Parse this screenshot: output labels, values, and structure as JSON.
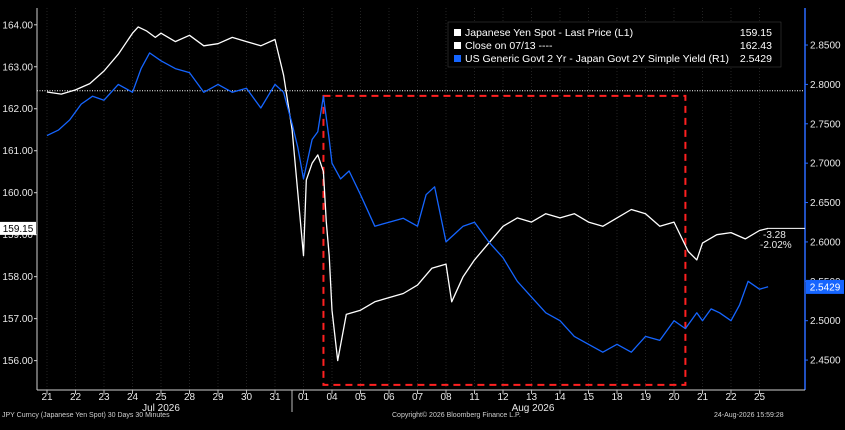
{
  "chart_data": {
    "type": "line",
    "x_unit": "trading days (Jul 21 2026 – Aug 25 2026, 30 minute bars)",
    "month_labels": [
      "Jul 2026",
      "Aug 2026"
    ],
    "x_ticks": [
      "21",
      "22",
      "23",
      "24",
      "25",
      "28",
      "29",
      "30",
      "31",
      "01",
      "04",
      "05",
      "06",
      "07",
      "08",
      "11",
      "12",
      "13",
      "14",
      "15",
      "18",
      "19",
      "20",
      "21",
      "22",
      "25"
    ],
    "left_axis": {
      "ticks": [
        "156.00",
        "157.00",
        "158.00",
        "159.00",
        "160.00",
        "161.00",
        "162.00",
        "163.00",
        "164.00"
      ],
      "ylim": [
        155.3,
        164.4
      ]
    },
    "right_axis": {
      "ticks": [
        "2.4500",
        "2.5000",
        "2.5500",
        "2.6000",
        "2.6500",
        "2.7000",
        "2.7500",
        "2.8000",
        "2.8500"
      ],
      "ylim": [
        2.412,
        2.897
      ]
    },
    "colors": {
      "yen": "#ffffff",
      "yield": "#1565ff",
      "highlight_box": "#ff2020",
      "grid": "#3a3a3a",
      "axis_right": "#2a6bff"
    },
    "legend": {
      "series1": {
        "label": "Japanese Yen Spot - Last Price (L1)",
        "value": "159.15"
      },
      "reference": {
        "label": "Close on 07/13 ----",
        "value": "162.43"
      },
      "series2": {
        "label": "US Generic Govt 2 Yr - Japan Govt 2Y Simple Yield (R1)",
        "value": "2.5429"
      }
    },
    "last_value_tags": {
      "left": "159.15",
      "right": "2.5429"
    },
    "change_annotation": {
      "abs": "-3.28",
      "pct": "-2.02%"
    },
    "reference_line": {
      "value": 162.43,
      "axis": "left"
    },
    "highlight_box": {
      "x_from": 9.7,
      "x_to": 22.4,
      "y_from_right": 2.4185,
      "y_to_right": 2.7855
    },
    "series": [
      {
        "name": "Japanese Yen Spot - Last Price (L1)",
        "axis": "left",
        "x": [
          0,
          0.5,
          1,
          1.5,
          2,
          2.5,
          3,
          3.2,
          3.5,
          3.8,
          4,
          4.5,
          5,
          5.5,
          6,
          6.5,
          7,
          7.5,
          8,
          8.3,
          8.6,
          8.8,
          9,
          9.1,
          9.3,
          9.5,
          9.7,
          9.8,
          9.9,
          10,
          10.2,
          10.5,
          11,
          11.5,
          12,
          12.5,
          13,
          13.5,
          14,
          14.2,
          14.6,
          15,
          15.5,
          16,
          16.5,
          17,
          17.5,
          18,
          18.5,
          19,
          19.5,
          20,
          20.5,
          21,
          21.5,
          22,
          22.5,
          22.8,
          23,
          23.5,
          24,
          24.5,
          25,
          25.3
        ],
        "values": [
          162.4,
          162.35,
          162.45,
          162.6,
          162.9,
          163.3,
          163.8,
          163.95,
          163.85,
          163.7,
          163.8,
          163.6,
          163.75,
          163.5,
          163.55,
          163.7,
          163.6,
          163.5,
          163.65,
          162.8,
          161.5,
          160.0,
          158.5,
          160.3,
          160.7,
          160.9,
          160.5,
          159.3,
          158.5,
          157.2,
          156.0,
          157.1,
          157.2,
          157.4,
          157.5,
          157.6,
          157.8,
          158.2,
          158.3,
          157.4,
          158.0,
          158.4,
          158.8,
          159.2,
          159.4,
          159.3,
          159.5,
          159.4,
          159.5,
          159.3,
          159.2,
          159.4,
          159.6,
          159.5,
          159.2,
          159.3,
          158.6,
          158.4,
          158.8,
          159.0,
          159.05,
          158.9,
          159.1,
          159.15
        ]
      },
      {
        "name": "US Generic Govt 2 Yr - Japan Govt 2Y Simple Yield (R1)",
        "axis": "right",
        "x": [
          0,
          0.4,
          0.8,
          1.2,
          1.6,
          2,
          2.5,
          3,
          3.3,
          3.6,
          4,
          4.5,
          5,
          5.5,
          6,
          6.5,
          7,
          7.5,
          8,
          8.3,
          8.6,
          8.8,
          9,
          9.3,
          9.5,
          9.7,
          9.9,
          10,
          10.3,
          10.6,
          11,
          11.5,
          12,
          12.5,
          13,
          13.3,
          13.6,
          14,
          14.3,
          14.6,
          15,
          15.5,
          16,
          16.5,
          17,
          17.5,
          18,
          18.5,
          19,
          19.5,
          20,
          20.5,
          21,
          21.5,
          22,
          22.4,
          22.8,
          23,
          23.3,
          23.6,
          24,
          24.3,
          24.6,
          25,
          25.3
        ],
        "values": [
          2.735,
          2.742,
          2.755,
          2.775,
          2.785,
          2.78,
          2.8,
          2.79,
          2.82,
          2.84,
          2.83,
          2.82,
          2.815,
          2.79,
          2.8,
          2.79,
          2.795,
          2.77,
          2.8,
          2.79,
          2.75,
          2.72,
          2.68,
          2.73,
          2.74,
          2.785,
          2.73,
          2.7,
          2.68,
          2.69,
          2.66,
          2.62,
          2.625,
          2.63,
          2.62,
          2.66,
          2.67,
          2.6,
          2.61,
          2.62,
          2.625,
          2.6,
          2.58,
          2.55,
          2.53,
          2.51,
          2.5,
          2.48,
          2.47,
          2.46,
          2.47,
          2.46,
          2.48,
          2.475,
          2.5,
          2.49,
          2.51,
          2.5,
          2.515,
          2.51,
          2.5,
          2.52,
          2.55,
          2.54,
          2.543
        ]
      }
    ]
  },
  "footer": {
    "left": "JPY Curncy (Japanese Yen Spot) 30 Days 30 Minutes",
    "center": "Copyright© 2026 Bloomberg Finance L.P.",
    "right": "24-Aug-2026 15:59:28"
  }
}
